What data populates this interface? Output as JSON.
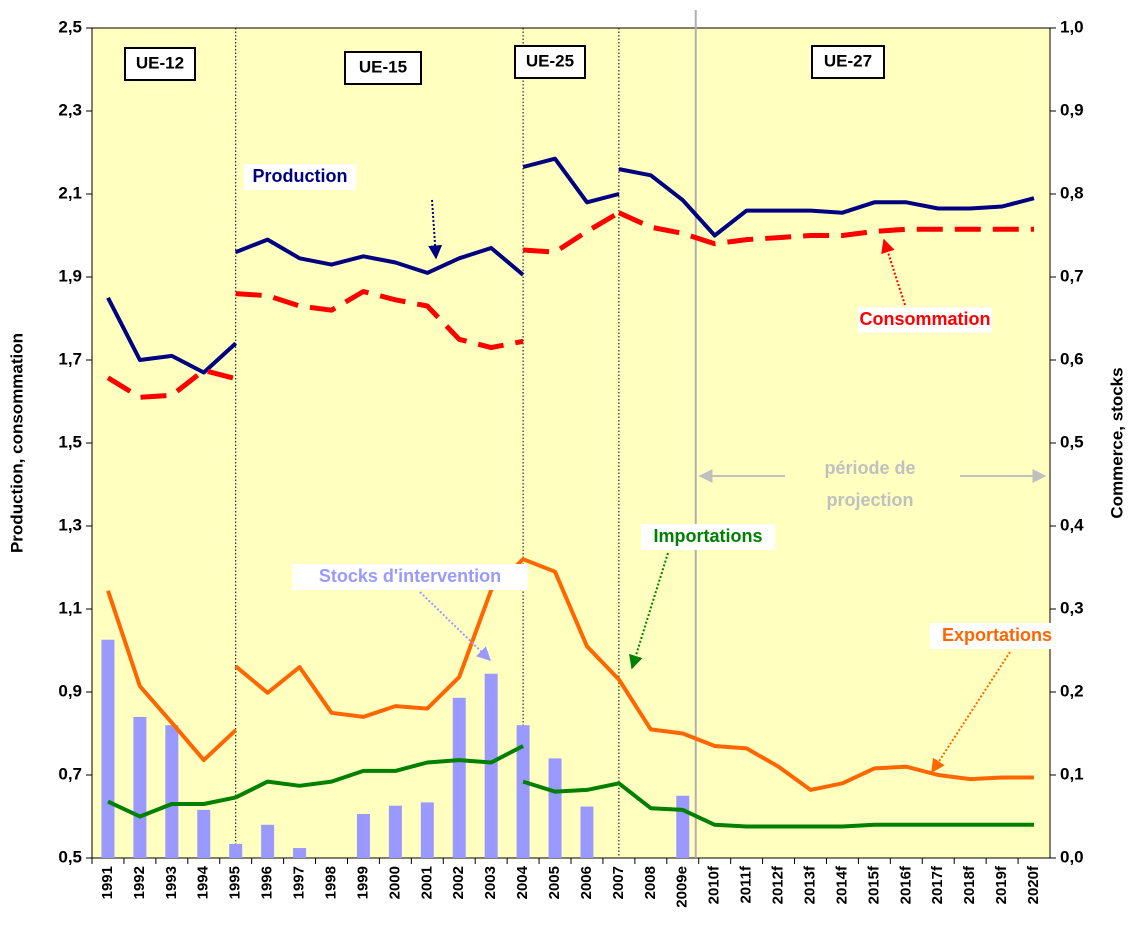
{
  "chart_data": {
    "type": "line",
    "categories": [
      "1991",
      "1992",
      "1993",
      "1994",
      "1995",
      "1996",
      "1997",
      "1998",
      "1999",
      "2000",
      "2001",
      "2002",
      "2003",
      "2004",
      "2005",
      "2006",
      "2007",
      "2008",
      "2009e",
      "2010f",
      "2011f",
      "2012f",
      "2013f",
      "2014f",
      "2015f",
      "2016f",
      "2017f",
      "2018f",
      "2019f",
      "2020f"
    ],
    "ylabel": "Production, consommation",
    "y2label": "Commerce, stocks",
    "ylim": [
      0.5,
      2.5
    ],
    "yticks": [
      {
        "value": 0.5,
        "label": "0,5"
      },
      {
        "value": 0.7,
        "label": "0,7"
      },
      {
        "value": 0.9,
        "label": "0,9"
      },
      {
        "value": 1.1,
        "label": "1,1"
      },
      {
        "value": 1.3,
        "label": "1,3"
      },
      {
        "value": 1.5,
        "label": "1,5"
      },
      {
        "value": 1.7,
        "label": "1,7"
      },
      {
        "value": 1.9,
        "label": "1,9"
      },
      {
        "value": 2.1,
        "label": "2,1"
      },
      {
        "value": 2.3,
        "label": "2,3"
      },
      {
        "value": 2.5,
        "label": "2,5"
      }
    ],
    "y2lim": [
      0,
      1.0
    ],
    "y2ticks": [
      {
        "value": 0,
        "label": "0,0"
      },
      {
        "value": 0.1,
        "label": "0,1"
      },
      {
        "value": 0.2,
        "label": "0,2"
      },
      {
        "value": 0.3,
        "label": "0,3"
      },
      {
        "value": 0.4,
        "label": "0,4"
      },
      {
        "value": 0.5,
        "label": "0,5"
      },
      {
        "value": 0.6,
        "label": "0,6"
      },
      {
        "value": 0.7,
        "label": "0,7"
      },
      {
        "value": 0.8,
        "label": "0,8"
      },
      {
        "value": 0.9,
        "label": "0,9"
      },
      {
        "value": 1.0,
        "label": "1,0"
      }
    ],
    "periods": [
      "UE-12",
      "UE-15",
      "UE-25",
      "UE-27"
    ],
    "projection_label": [
      "période de",
      "projection"
    ],
    "series": [
      {
        "name": "Stocks d'intervention",
        "type": "bar",
        "color": "#9999ff",
        "axis": "y2",
        "values": [
          0.263,
          0.17,
          0.16,
          0.058,
          0.017,
          0.04,
          0.012,
          0,
          0.053,
          0.063,
          0.067,
          0.193,
          0.222,
          0.16,
          0.12,
          0.062,
          0,
          0,
          0.075,
          null,
          null,
          null,
          null,
          null,
          null,
          null,
          null,
          null,
          null,
          null
        ]
      },
      {
        "name": "Production",
        "color": "#000080",
        "values": [
          1.85,
          1.7,
          1.71,
          1.67,
          1.74,
          null,
          null,
          null,
          null,
          null,
          null,
          null,
          null,
          null,
          null,
          null,
          null,
          null,
          null,
          null,
          null,
          null,
          null,
          null,
          null,
          null,
          null,
          null,
          null,
          null
        ]
      },
      {
        "color": "#000080",
        "values": [
          null,
          null,
          null,
          null,
          1.96,
          1.99,
          1.945,
          1.93,
          1.95,
          1.935,
          1.91,
          1.945,
          1.97,
          1.905,
          null,
          null,
          null,
          null,
          null,
          null,
          null,
          null,
          null,
          null,
          null,
          null,
          null,
          null,
          null,
          null
        ]
      },
      {
        "color": "#000080",
        "values": [
          null,
          null,
          null,
          null,
          null,
          null,
          null,
          null,
          null,
          null,
          null,
          null,
          null,
          2.165,
          2.185,
          2.08,
          2.1,
          null,
          null,
          null,
          null,
          null,
          null,
          null,
          null,
          null,
          null,
          null,
          null,
          null
        ]
      },
      {
        "color": "#000080",
        "values": [
          null,
          null,
          null,
          null,
          null,
          null,
          null,
          null,
          null,
          null,
          null,
          null,
          null,
          null,
          null,
          null,
          2.16,
          2.145,
          2.085,
          2.0,
          2.06,
          2.06,
          2.06,
          2.055,
          2.08,
          2.08,
          2.065,
          2.065,
          2.07,
          2.09
        ]
      },
      {
        "name": "Consommation",
        "color": "#ff0000",
        "dashed": true,
        "values": [
          1.657,
          1.61,
          1.615,
          1.675,
          1.655,
          null,
          null,
          null,
          null,
          null,
          null,
          null,
          null,
          null,
          null,
          null,
          null,
          null,
          null,
          null,
          null,
          null,
          null,
          null,
          null,
          null,
          null,
          null,
          null,
          null
        ]
      },
      {
        "color": "#ff0000",
        "dashed": true,
        "values": [
          null,
          null,
          null,
          null,
          1.86,
          1.855,
          1.83,
          1.82,
          1.865,
          1.845,
          1.83,
          1.75,
          1.73,
          1.745,
          null,
          null,
          null,
          null,
          null,
          null,
          null,
          null,
          null,
          null,
          null,
          null,
          null,
          null,
          null,
          null
        ]
      },
      {
        "color": "#ff0000",
        "dashed": true,
        "values": [
          null,
          null,
          null,
          null,
          null,
          null,
          null,
          null,
          null,
          null,
          null,
          null,
          null,
          1.965,
          1.96,
          2.01,
          2.055,
          null,
          null,
          null,
          null,
          null,
          null,
          null,
          null,
          null,
          null,
          null,
          null,
          null
        ]
      },
      {
        "color": "#ff0000",
        "dashed": true,
        "values": [
          null,
          null,
          null,
          null,
          null,
          null,
          null,
          null,
          null,
          null,
          null,
          null,
          null,
          null,
          null,
          null,
          2.055,
          2.02,
          2.005,
          1.98,
          1.99,
          1.995,
          2.0,
          2.0,
          2.01,
          2.015,
          2.015,
          2.015,
          2.015,
          2.015
        ]
      },
      {
        "name": "Exportations",
        "color": "#ff6600",
        "axis": "y2",
        "values": [
          0.322,
          0.207,
          0.163,
          0.118,
          0.154,
          null,
          null,
          null,
          null,
          null,
          null,
          null,
          null,
          null,
          null,
          null,
          null,
          null,
          null,
          null,
          null,
          null,
          null,
          null,
          null,
          null,
          null,
          null,
          null,
          null
        ]
      },
      {
        "color": "#ff6600",
        "axis": "y2",
        "values": [
          null,
          null,
          null,
          null,
          0.231,
          0.199,
          0.23,
          0.175,
          0.17,
          0.183,
          0.18,
          0.218,
          0.323,
          0.36,
          0.345,
          0.255,
          0.215,
          0.155,
          0.15,
          0.135,
          0.132,
          0.11,
          0.082,
          0.09,
          0.108,
          0.11,
          0.1,
          0.095,
          0.097,
          0.097
        ]
      },
      {
        "name": "Importations",
        "color": "#008000",
        "axis": "y2",
        "values": [
          0.068,
          0.05,
          0.065,
          0.065,
          0.073,
          null,
          null,
          null,
          null,
          null,
          null,
          null,
          null,
          null,
          null,
          null,
          null,
          null,
          null,
          null,
          null,
          null,
          null,
          null,
          null,
          null,
          null,
          null,
          null,
          null
        ]
      },
      {
        "color": "#008000",
        "axis": "y2",
        "values": [
          null,
          null,
          null,
          null,
          0.073,
          0.092,
          0.087,
          0.092,
          0.105,
          0.105,
          0.115,
          0.118,
          0.115,
          0.135,
          null,
          null,
          null,
          null,
          null,
          null,
          null,
          null,
          null,
          null,
          null,
          null,
          null,
          null,
          null,
          null
        ]
      },
      {
        "color": "#008000",
        "axis": "y2",
        "values": [
          null,
          null,
          null,
          null,
          null,
          null,
          null,
          null,
          null,
          null,
          null,
          null,
          null,
          0.092,
          0.08,
          0.082,
          0.09,
          0.06,
          0.058,
          0.04,
          0.038,
          0.038,
          0.038,
          0.038,
          0.04,
          0.04,
          0.04,
          0.04,
          0.04,
          0.04
        ]
      }
    ]
  }
}
